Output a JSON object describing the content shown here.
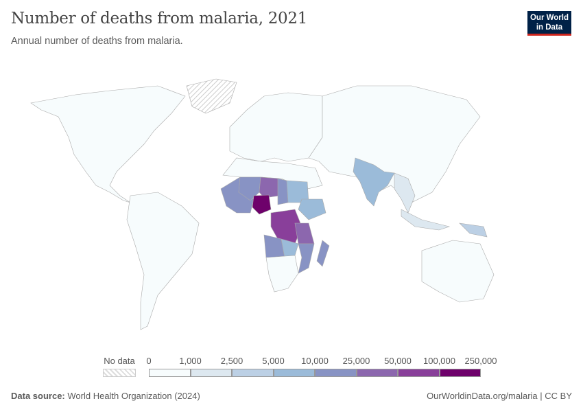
{
  "title": "Number of deaths from malaria, 2021",
  "subtitle": "Annual number of deaths from malaria.",
  "logo": {
    "line1": "Our World",
    "line2": "in Data"
  },
  "legend": {
    "no_data_label": "No data",
    "ticks": [
      "0",
      "1,000",
      "2,500",
      "5,000",
      "10,000",
      "25,000",
      "50,000",
      "100,000",
      "250,000"
    ],
    "colors": [
      "#f7fcfd",
      "#dde8f0",
      "#bcd0e5",
      "#9bbbd9",
      "#8893c4",
      "#8c67ae",
      "#893f9a",
      "#6e016b"
    ]
  },
  "map_regions": [
    {
      "name": "north-america",
      "bin": 0
    },
    {
      "name": "south-america",
      "bin": 0
    },
    {
      "name": "europe",
      "bin": 0
    },
    {
      "name": "asia",
      "bin": 0
    },
    {
      "name": "australia",
      "bin": 0
    },
    {
      "name": "north-africa",
      "bin": 0
    },
    {
      "name": "india",
      "bin": 3
    },
    {
      "name": "southeast-asia",
      "bin": 1
    },
    {
      "name": "indonesia",
      "bin": 1
    },
    {
      "name": "png",
      "bin": 2
    },
    {
      "name": "west-africa",
      "bin": 4
    },
    {
      "name": "mali",
      "bin": 4
    },
    {
      "name": "niger",
      "bin": 5
    },
    {
      "name": "chad",
      "bin": 4
    },
    {
      "name": "sudan",
      "bin": 3
    },
    {
      "name": "nigeria",
      "bin": 7
    },
    {
      "name": "ethiopia",
      "bin": 3
    },
    {
      "name": "drc",
      "bin": 6
    },
    {
      "name": "tanzania",
      "bin": 5
    },
    {
      "name": "angola",
      "bin": 4
    },
    {
      "name": "mozambique",
      "bin": 4
    },
    {
      "name": "zambia",
      "bin": 3
    },
    {
      "name": "madagascar",
      "bin": 4
    },
    {
      "name": "southern-africa",
      "bin": 0
    }
  ],
  "footer": {
    "source_label": "Data source:",
    "source": "World Health Organization (2024)",
    "link": "OurWorldinData.org/malaria | CC BY"
  }
}
